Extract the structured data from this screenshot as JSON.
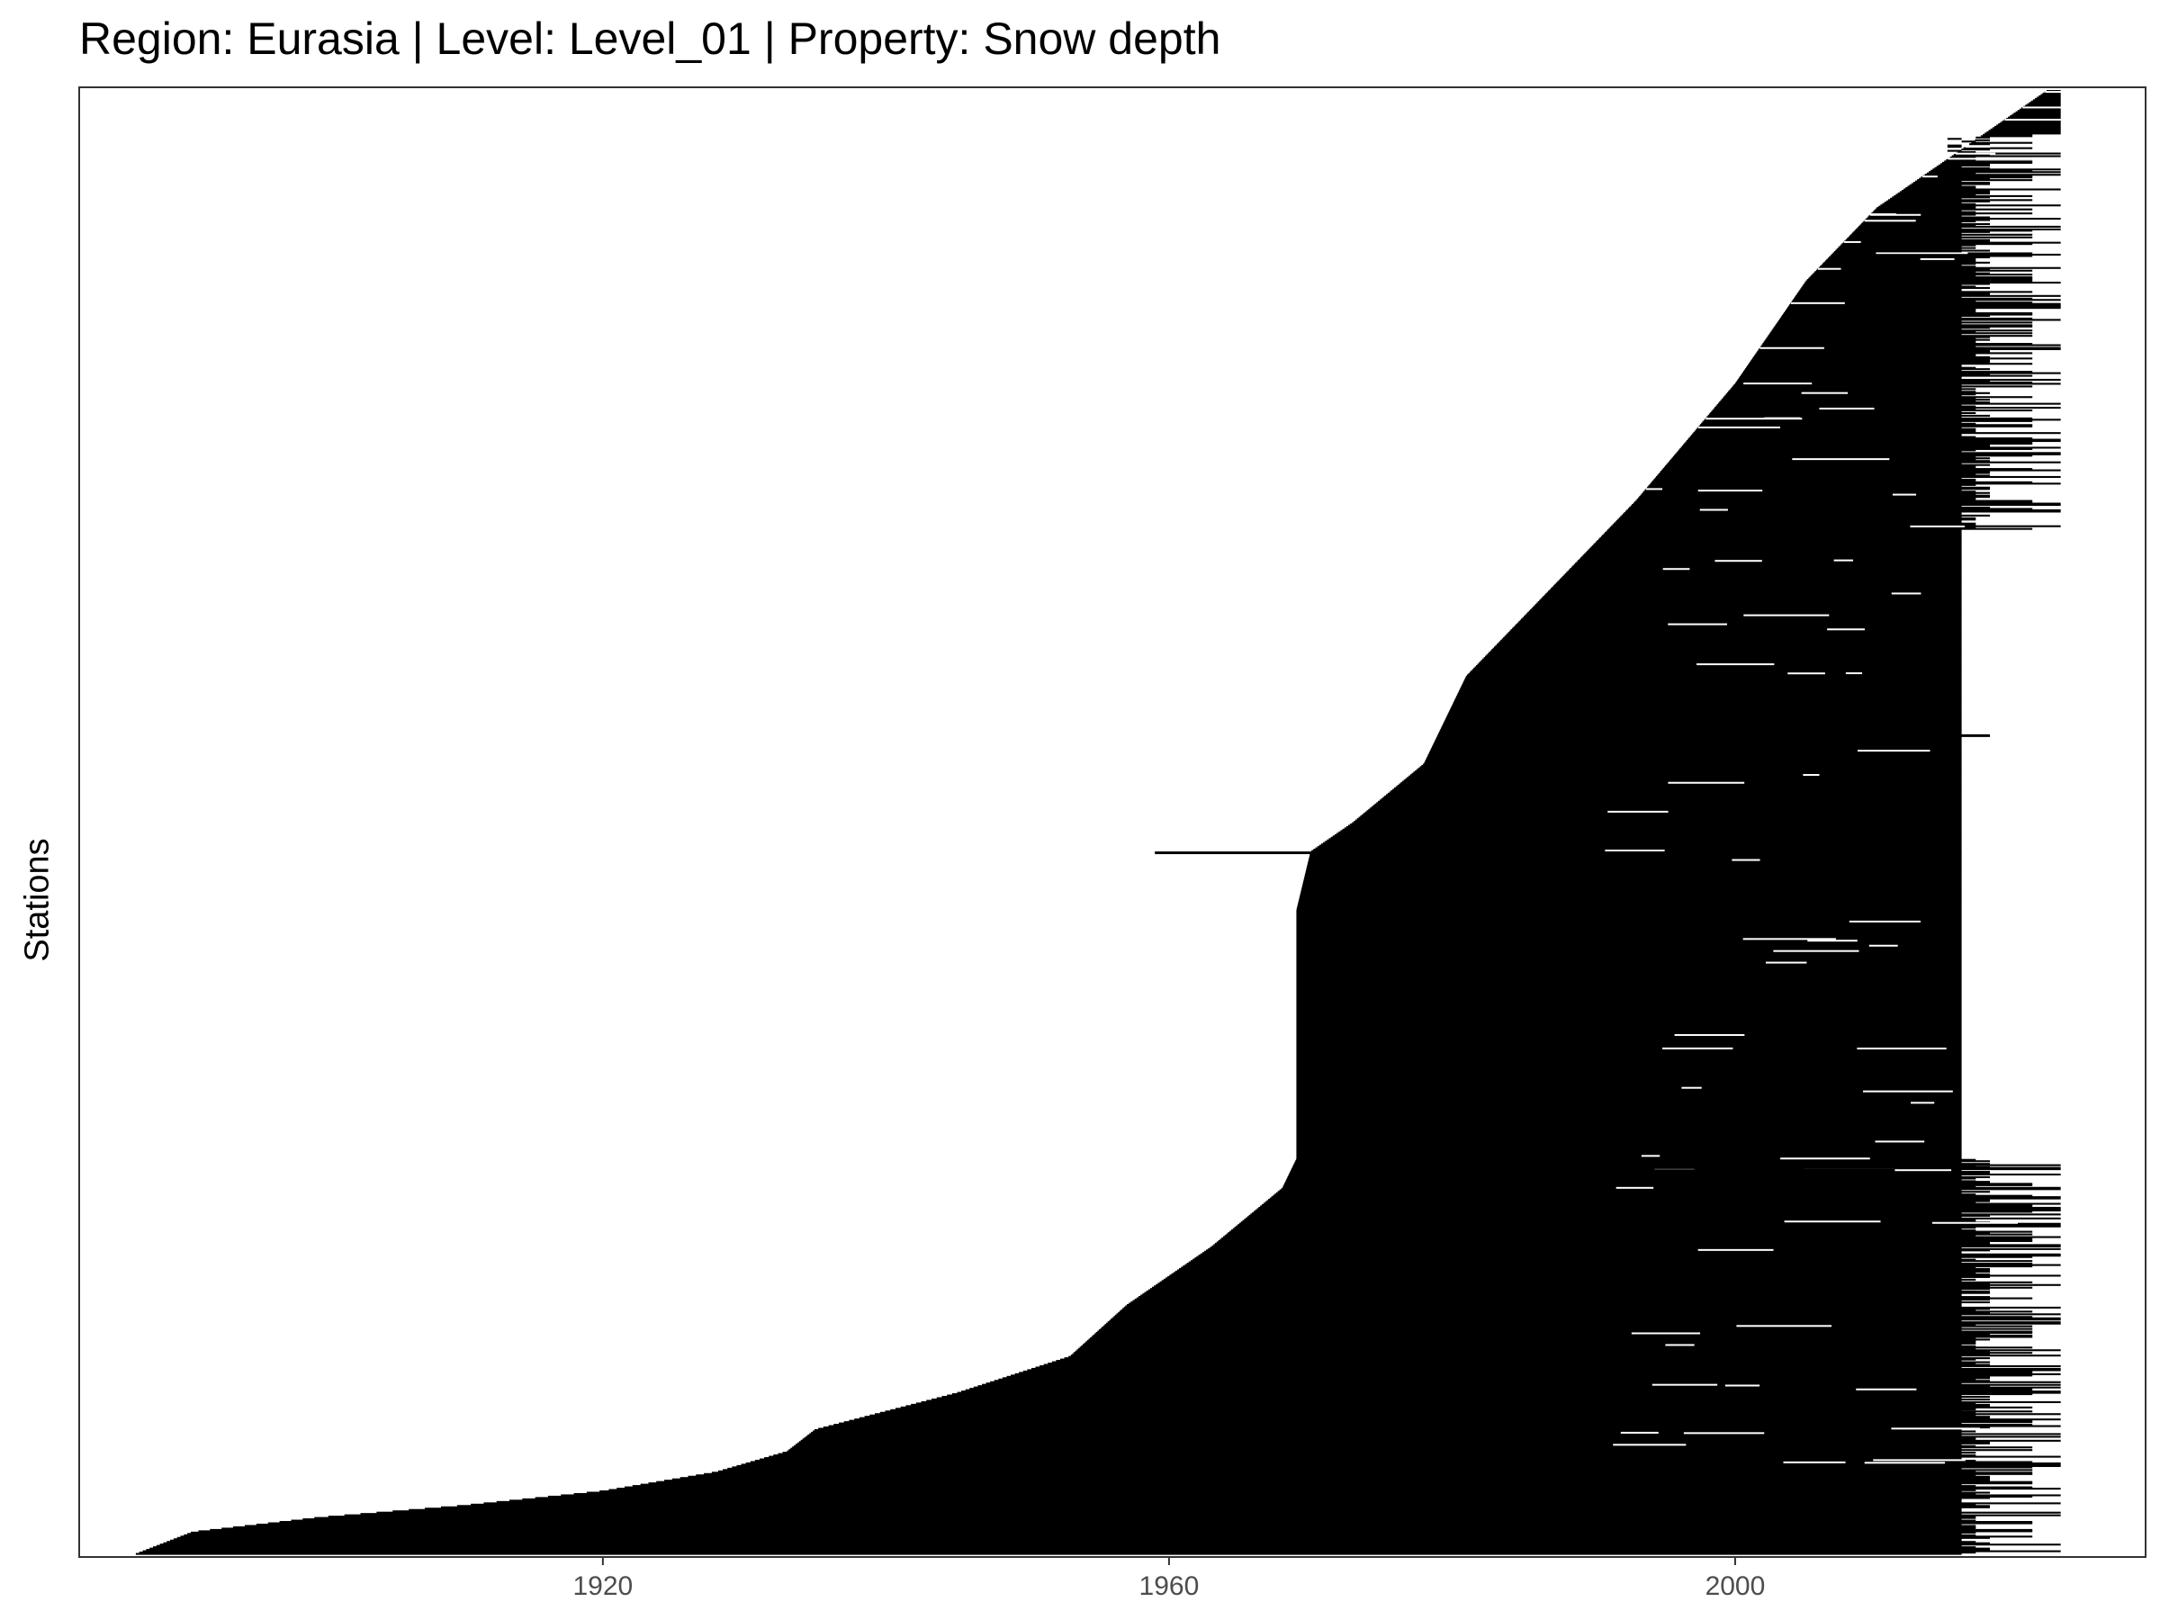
{
  "chart_data": {
    "type": "timeline",
    "title": "Region: Eurasia | Level: Level_01 | Property: Snow depth",
    "xlabel": "",
    "ylabel": "Stations",
    "xlim": [
      1883,
      2029
    ],
    "x_ticks": [
      1920,
      1960,
      2000
    ],
    "grid": false,
    "n_stations": 1100,
    "start_profile": [
      [
        0.0,
        2022
      ],
      [
        0.04,
        2016
      ],
      [
        0.08,
        2010
      ],
      [
        0.13,
        2005
      ],
      [
        0.2,
        2000
      ],
      [
        0.28,
        1993
      ],
      [
        0.34,
        1987
      ],
      [
        0.4,
        1981
      ],
      [
        0.46,
        1978
      ],
      [
        0.5,
        1973
      ],
      [
        0.52,
        1970
      ],
      [
        0.56,
        1969
      ],
      [
        0.73,
        1969
      ],
      [
        0.75,
        1968
      ],
      [
        0.79,
        1963
      ],
      [
        0.81,
        1960
      ],
      [
        0.83,
        1957
      ],
      [
        0.865,
        1953
      ],
      [
        0.89,
        1945
      ],
      [
        0.915,
        1935
      ],
      [
        0.93,
        1933
      ],
      [
        0.944,
        1928
      ],
      [
        0.957,
        1920
      ],
      [
        0.967,
        1910
      ],
      [
        0.975,
        1900
      ],
      [
        0.985,
        1891
      ],
      [
        1.0,
        1887
      ]
    ],
    "end_years": [
      2023,
      2021,
      2018,
      2017,
      2016
    ],
    "full_coverage_band": [
      0.3,
      0.73
    ],
    "end_year_band": 2016,
    "notable_long_records": [
      {
        "row_fraction": 0.112,
        "start": 2007,
        "end": 2018
      },
      {
        "row_fraction": 0.44,
        "start": 2003,
        "end": 2018
      },
      {
        "row_fraction": 0.5,
        "start": 1977,
        "end": 2015
      },
      {
        "row_fraction": 0.52,
        "start": 1959,
        "end": 2016
      },
      {
        "row_fraction": 0.735,
        "start": 1990,
        "end": 2018
      },
      {
        "row_fraction": 0.745,
        "start": 2000,
        "end": 2018
      },
      {
        "row_fraction": 0.82,
        "start": 2006,
        "end": 2017
      },
      {
        "row_fraction": 0.87,
        "start": 2003,
        "end": 2017
      },
      {
        "row_fraction": 0.9,
        "start": 2002,
        "end": 2017
      },
      {
        "row_fraction": 0.955,
        "start": 2005,
        "end": 2017
      }
    ]
  }
}
